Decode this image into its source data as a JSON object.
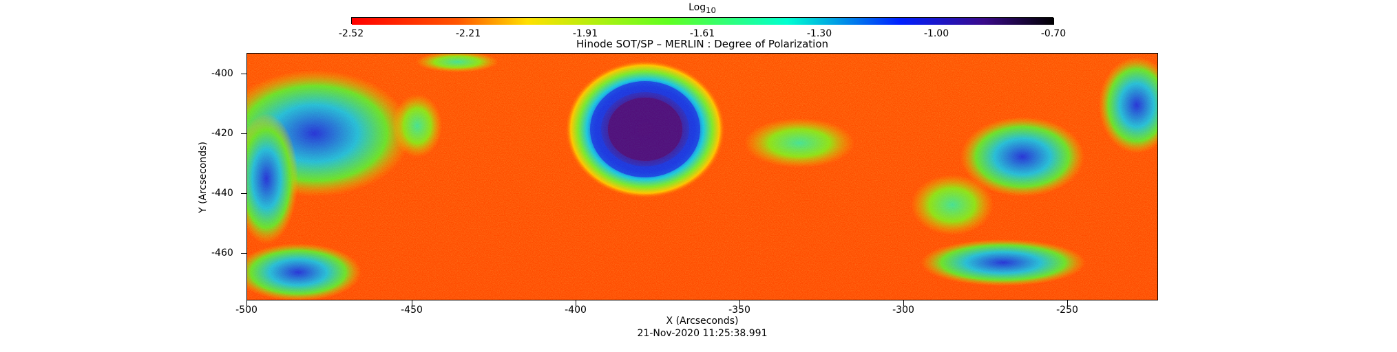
{
  "header": {
    "colorbar_label_main": "Log",
    "colorbar_label_sub": "10",
    "colorbar_ticks": [
      "-2.52",
      "-2.21",
      "-1.91",
      "-1.61",
      "-1.30",
      "-1.00",
      "-0.70"
    ]
  },
  "plot": {
    "title": "Hinode SOT/SP – MERLIN : Degree of Polarization",
    "x_label": "X (Arcseconds)",
    "y_label": "Y (Arcseconds)",
    "x_ticks": [
      "-500",
      "-450",
      "-400",
      "-350",
      "-300",
      "-250"
    ],
    "y_ticks": [
      "-400",
      "-420",
      "-440",
      "-460"
    ],
    "date": "21-Nov-2020  11:25:38.991"
  },
  "colors": {
    "background": "#ffffff",
    "field_red": "#ff3b00",
    "field_orange": "#ff7a00",
    "field_yellow": "#ffd400",
    "field_green": "#77ff00",
    "field_cyan": "#00e5ff",
    "field_blue": "#0040ff",
    "field_purple": "#4a0b8a",
    "field_black": "#000000"
  }
}
